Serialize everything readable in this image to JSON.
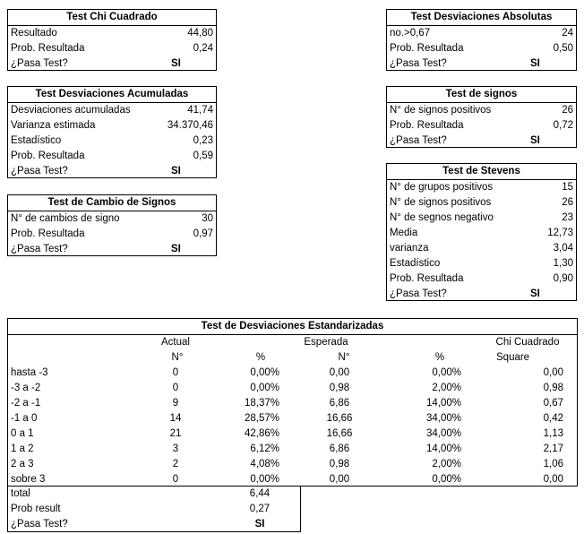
{
  "tests": [
    {
      "title": "Test Chi Cuadrado",
      "rows": [
        {
          "label": "Resultado",
          "value": "44,80"
        },
        {
          "label": "Prob. Resultada",
          "value": "0,24"
        },
        {
          "label": "¿Pasa Test?",
          "result": "SI"
        }
      ]
    },
    {
      "title": "Test Desviaciones Absolutas",
      "rows": [
        {
          "label": "no.>0,67",
          "value": "24"
        },
        {
          "label": "Prob. Resultada",
          "value": "0,50"
        },
        {
          "label": "¿Pasa Test?",
          "result": "SI"
        }
      ]
    },
    {
      "title": "Test Desviaciones Acumuladas",
      "rows": [
        {
          "label": "Desviaciones acumuladas",
          "value": "41,74"
        },
        {
          "label": "Varianza estimada",
          "value": "34.370,46"
        },
        {
          "label": "Estadístico",
          "value": "0,23"
        },
        {
          "label": "Prob. Resultada",
          "value": "0,59"
        },
        {
          "label": "¿Pasa Test?",
          "result": "SI"
        }
      ]
    },
    {
      "title": "Test de signos",
      "rows": [
        {
          "label": "N° de signos positivos",
          "value": "26"
        },
        {
          "label": "Prob. Resultada",
          "value": "0,72"
        },
        {
          "label": "¿Pasa Test?",
          "result": "SI"
        }
      ]
    },
    {
      "title": "Test de Cambio de Signos",
      "rows": [
        {
          "label": "N° de cambios de signo",
          "value": "30"
        },
        {
          "label": "Prob. Resultada",
          "value": "0,97"
        },
        {
          "label": "¿Pasa Test?",
          "result": "SI"
        }
      ]
    },
    {
      "title": "Test de Stevens",
      "rows": [
        {
          "label": "N° de grupos positivos",
          "value": "15"
        },
        {
          "label": "N° de signos positivos",
          "value": "26"
        },
        {
          "label": "N° de segnos negativo",
          "value": "23"
        },
        {
          "label": "Media",
          "value": "12,73"
        },
        {
          "label": "varianza",
          "value": "3,04"
        },
        {
          "label": "Estadístico",
          "value": "1,30"
        },
        {
          "label": "Prob. Resultada",
          "value": "0,90"
        },
        {
          "label": "¿Pasa Test?",
          "result": "SI"
        }
      ]
    }
  ],
  "table": {
    "title": "Test de Desviaciones Estandarizadas",
    "header1": [
      "Actual",
      "Esperada",
      "Chi Cuadrado"
    ],
    "header2": [
      "N°",
      "%",
      "N°",
      "%",
      "Square"
    ],
    "rows": [
      [
        "hasta -3",
        "0",
        "0,00%",
        "0,00",
        "0,00%",
        "0,00"
      ],
      [
        "-3 a -2",
        "0",
        "0,00%",
        "0,98",
        "2,00%",
        "0,98"
      ],
      [
        "-2 a -1",
        "9",
        "18,37%",
        "6,86",
        "14,00%",
        "0,67"
      ],
      [
        "-1 a 0",
        "14",
        "28,57%",
        "16,66",
        "34,00%",
        "0,42"
      ],
      [
        "0 a 1",
        "21",
        "42,86%",
        "16,66",
        "34,00%",
        "1,13"
      ],
      [
        "1 a 2",
        "3",
        "6,12%",
        "6,86",
        "14,00%",
        "2,17"
      ],
      [
        "2 a 3",
        "2",
        "4,08%",
        "0,98",
        "2,00%",
        "1,06"
      ],
      [
        "sobre 3",
        "0",
        "0,00%",
        "0,00",
        "0,00%",
        "0,00"
      ]
    ],
    "footer": [
      {
        "label": "total",
        "value": "6,44"
      },
      {
        "label": "Prob result",
        "value": "0,27"
      },
      {
        "label": "¿Pasa Test?",
        "result": "SI"
      }
    ]
  }
}
